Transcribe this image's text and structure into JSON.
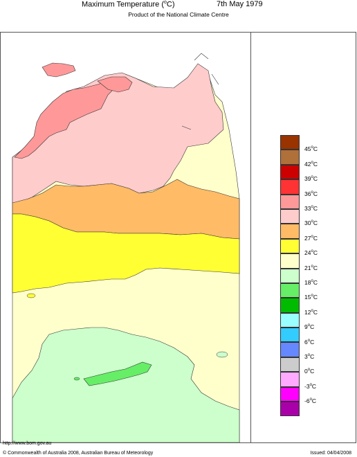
{
  "header": {
    "title": "Maximum Temperature (",
    "title_sup": "o",
    "title_end": "C)",
    "date": "7th May 1979",
    "subtitle": "Product of the National Climate Centre"
  },
  "legend": {
    "unit": "C",
    "degree": "o",
    "bands": [
      {
        "color": "#993300"
      },
      {
        "color": "#b0703a"
      },
      {
        "color": "#cc0000"
      },
      {
        "color": "#ff3333"
      },
      {
        "color": "#ff9999"
      },
      {
        "color": "#ffcccc"
      },
      {
        "color": "#ffbb66"
      },
      {
        "color": "#ffff33"
      },
      {
        "color": "#ffffcc"
      },
      {
        "color": "#ccffcc"
      },
      {
        "color": "#66ee66"
      },
      {
        "color": "#00bb00"
      },
      {
        "color": "#99ffff"
      },
      {
        "color": "#33ccff"
      },
      {
        "color": "#6688ff"
      },
      {
        "color": "#cccccc"
      },
      {
        "color": "#ffaaff"
      },
      {
        "color": "#ff00ff"
      },
      {
        "color": "#aa00aa"
      }
    ],
    "ticks": [
      "45",
      "42",
      "39",
      "36",
      "33",
      "30",
      "27",
      "24",
      "21",
      "18",
      "15",
      "12",
      "9",
      "6",
      "3",
      "0",
      "-3",
      "-6"
    ]
  },
  "footer": {
    "url": "http://www.bom.gov.au",
    "copyright": "© Commonwealth of Australia 2008, Australian Bureau of Meteorology",
    "issued": "Issued: 04/04/2008"
  }
}
